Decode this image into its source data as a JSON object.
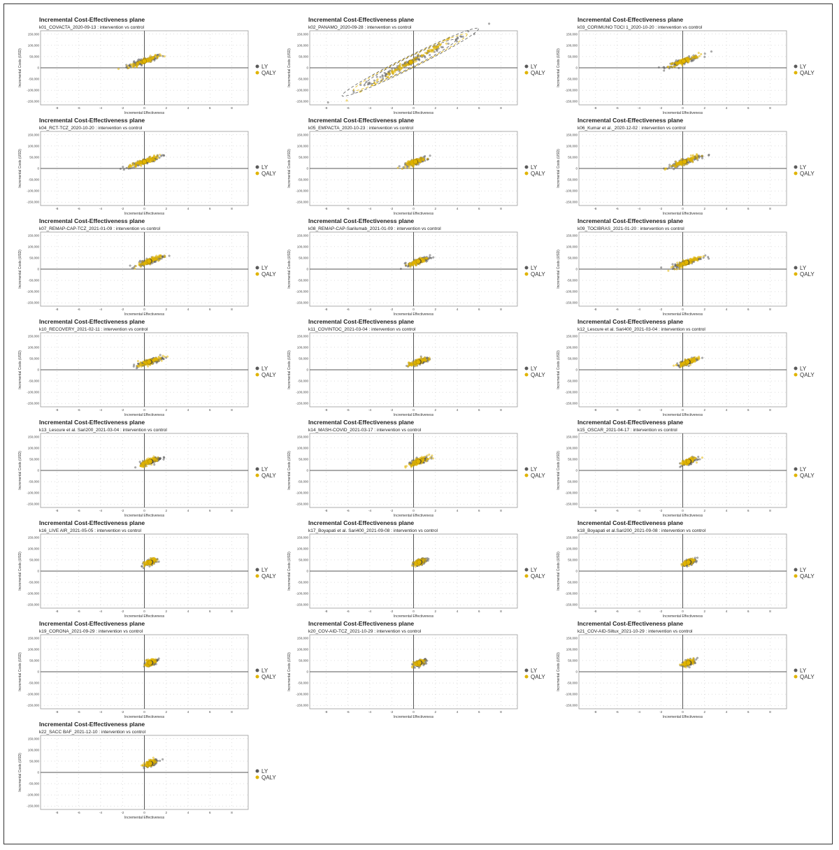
{
  "colors": {
    "LY": "#5a5a5a",
    "QALY": "#e0b400",
    "QALY_edge": "#b08a00",
    "grid": "#bdbdbd",
    "axis": "#555555"
  },
  "chart_data": [
    {
      "type": "scatter",
      "title": "Incremental Cost-Effectiveness plane",
      "subtitle": "k01_COVACTA_2020-09-13 : intervention vs control",
      "mean_effect": 0.0,
      "mean_cost": 30000,
      "effect_sd": 0.8,
      "cost_slope": 15000,
      "ellipse": false
    },
    {
      "type": "scatter",
      "title": "Incremental Cost-Effectiveness plane",
      "subtitle": "k02_PANAMO_2020-09-28 : intervention vs control",
      "mean_effect": -0.3,
      "mean_cost": 25000,
      "effect_sd": 2.6,
      "cost_slope": 24000,
      "ellipse": true
    },
    {
      "type": "scatter",
      "title": "Incremental Cost-Effectiveness plane",
      "subtitle": "k03_CORIMUNO TOCI 1_2020-10-20 : intervention vs control",
      "mean_effect": 0.1,
      "mean_cost": 30000,
      "effect_sd": 0.8,
      "cost_slope": 15000,
      "ellipse": false
    },
    {
      "type": "scatter",
      "title": "Incremental Cost-Effectiveness plane",
      "subtitle": "k04_RCT-TCZ_2020-10-20 : intervention vs control",
      "mean_effect": 0.0,
      "mean_cost": 30000,
      "effect_sd": 0.75,
      "cost_slope": 15000,
      "ellipse": false
    },
    {
      "type": "scatter",
      "title": "Incremental Cost-Effectiveness plane",
      "subtitle": "k05_EMPACTA_2020-10-23 : intervention vs control",
      "mean_effect": 0.2,
      "mean_cost": 30000,
      "effect_sd": 0.5,
      "cost_slope": 15000,
      "ellipse": false
    },
    {
      "type": "scatter",
      "title": "Incremental Cost-Effectiveness plane",
      "subtitle": "k06_Kumar et al._2020-12-02 : intervention vs control",
      "mean_effect": 0.2,
      "mean_cost": 30000,
      "effect_sd": 0.8,
      "cost_slope": 15000,
      "ellipse": false
    },
    {
      "type": "scatter",
      "title": "Incremental Cost-Effectiveness plane",
      "subtitle": "k07_REMAP-CAP-TCZ_2021-01-09 : intervention vs control",
      "mean_effect": 0.5,
      "mean_cost": 35000,
      "effect_sd": 0.6,
      "cost_slope": 15000,
      "ellipse": false
    },
    {
      "type": "scatter",
      "title": "Incremental Cost-Effectiveness plane",
      "subtitle": "k08_REMAP-CAP-Sarilumab_2021-01-09 : intervention vs control",
      "mean_effect": 0.5,
      "mean_cost": 35000,
      "effect_sd": 0.5,
      "cost_slope": 15000,
      "ellipse": false
    },
    {
      "type": "scatter",
      "title": "Incremental Cost-Effectiveness plane",
      "subtitle": "k09_TOCIBRAS_2021-01-20 : intervention vs control",
      "mean_effect": 0.4,
      "mean_cost": 30000,
      "effect_sd": 0.7,
      "cost_slope": 15000,
      "ellipse": false
    },
    {
      "type": "scatter",
      "title": "Incremental Cost-Effectiveness plane",
      "subtitle": "k10_RECOVERY_2021-02-11 : intervention vs control",
      "mean_effect": 0.5,
      "mean_cost": 35000,
      "effect_sd": 0.6,
      "cost_slope": 15000,
      "ellipse": false
    },
    {
      "type": "scatter",
      "title": "Incremental Cost-Effectiveness plane",
      "subtitle": "k11_COVINTOC_2021-03-04 : intervention vs control",
      "mean_effect": 0.5,
      "mean_cost": 35000,
      "effect_sd": 0.5,
      "cost_slope": 15000,
      "ellipse": false
    },
    {
      "type": "scatter",
      "title": "Incremental Cost-Effectiveness plane",
      "subtitle": "k12_Lescure et al. Sari400_2021-03-04 : intervention vs control",
      "mean_effect": 0.5,
      "mean_cost": 35000,
      "effect_sd": 0.5,
      "cost_slope": 15000,
      "ellipse": false
    },
    {
      "type": "scatter",
      "title": "Incremental Cost-Effectiveness plane",
      "subtitle": "k13_Lescure et al. Sari200_2021-03-04 : intervention vs control",
      "mean_effect": 0.6,
      "mean_cost": 40000,
      "effect_sd": 0.5,
      "cost_slope": 15000,
      "ellipse": false
    },
    {
      "type": "scatter",
      "title": "Incremental Cost-Effectiveness plane",
      "subtitle": "k14_MASH-COVID_2021-03-17 : intervention vs control",
      "mean_effect": 0.5,
      "mean_cost": 40000,
      "effect_sd": 0.5,
      "cost_slope": 15000,
      "ellipse": false
    },
    {
      "type": "scatter",
      "title": "Incremental Cost-Effectiveness plane",
      "subtitle": "k15_OSCAR_2021-04-17 : intervention vs control",
      "mean_effect": 0.6,
      "mean_cost": 40000,
      "effect_sd": 0.35,
      "cost_slope": 15000,
      "ellipse": false
    },
    {
      "type": "scatter",
      "title": "Incremental Cost-Effectiveness plane",
      "subtitle": "k16_LIVE AIR_2021-05-05 : intervention vs control",
      "mean_effect": 0.6,
      "mean_cost": 40000,
      "effect_sd": 0.3,
      "cost_slope": 15000,
      "ellipse": false
    },
    {
      "type": "scatter",
      "title": "Incremental Cost-Effectiveness plane",
      "subtitle": "k17_Boyapati et al. Sari400_2021-09-08 : intervention vs control",
      "mean_effect": 0.6,
      "mean_cost": 40000,
      "effect_sd": 0.3,
      "cost_slope": 15000,
      "ellipse": false
    },
    {
      "type": "scatter",
      "title": "Incremental Cost-Effectiveness plane",
      "subtitle": "k18_Boyapati et al.Sari200_2021-09-08 : intervention vs control",
      "mean_effect": 0.6,
      "mean_cost": 40000,
      "effect_sd": 0.3,
      "cost_slope": 15000,
      "ellipse": false
    },
    {
      "type": "scatter",
      "title": "Incremental Cost-Effectiveness plane",
      "subtitle": "k19_CORONA_2021-09-29 : intervention vs control",
      "mean_effect": 0.6,
      "mean_cost": 40000,
      "effect_sd": 0.3,
      "cost_slope": 15000,
      "ellipse": false
    },
    {
      "type": "scatter",
      "title": "Incremental Cost-Effectiveness plane",
      "subtitle": "k20_COV-AID-TCZ_2021-10-29 : intervention vs control",
      "mean_effect": 0.6,
      "mean_cost": 40000,
      "effect_sd": 0.3,
      "cost_slope": 15000,
      "ellipse": false
    },
    {
      "type": "scatter",
      "title": "Incremental Cost-Effectiveness plane",
      "subtitle": "k21_COV-AID-Siltux_2021-10-29 : intervention vs control",
      "mean_effect": 0.6,
      "mean_cost": 40000,
      "effect_sd": 0.3,
      "cost_slope": 15000,
      "ellipse": false
    },
    {
      "type": "scatter",
      "title": "Incremental Cost-Effectiveness plane",
      "subtitle": "k22_SACC BAF_2021-12-10 : intervention vs control",
      "mean_effect": 0.6,
      "mean_cost": 40000,
      "effect_sd": 0.3,
      "cost_slope": 15000,
      "ellipse": false
    }
  ],
  "axes": {
    "xlabel": "Incremental Effectiveness",
    "ylabel": "Incremental Costs (USD)",
    "xlim": [
      -9.5,
      9.5
    ],
    "ylim": [
      -165000,
      165000
    ],
    "xticks": [
      "-8",
      "-6",
      "-4",
      "-2",
      "0",
      "2",
      "4",
      "6",
      "8"
    ],
    "xtick_values": [
      -8,
      -6,
      -4,
      -2,
      0,
      2,
      4,
      6,
      8
    ],
    "yticks": [
      "150,000",
      "100,000",
      "50,000",
      "0",
      "-50,000",
      "-100,000",
      "-150,000"
    ],
    "ytick_values": [
      150000,
      100000,
      50000,
      0,
      -50000,
      -100000,
      -150000
    ],
    "grid": true
  },
  "legend": {
    "placement": "right",
    "items": [
      "LY",
      "QALY"
    ]
  }
}
